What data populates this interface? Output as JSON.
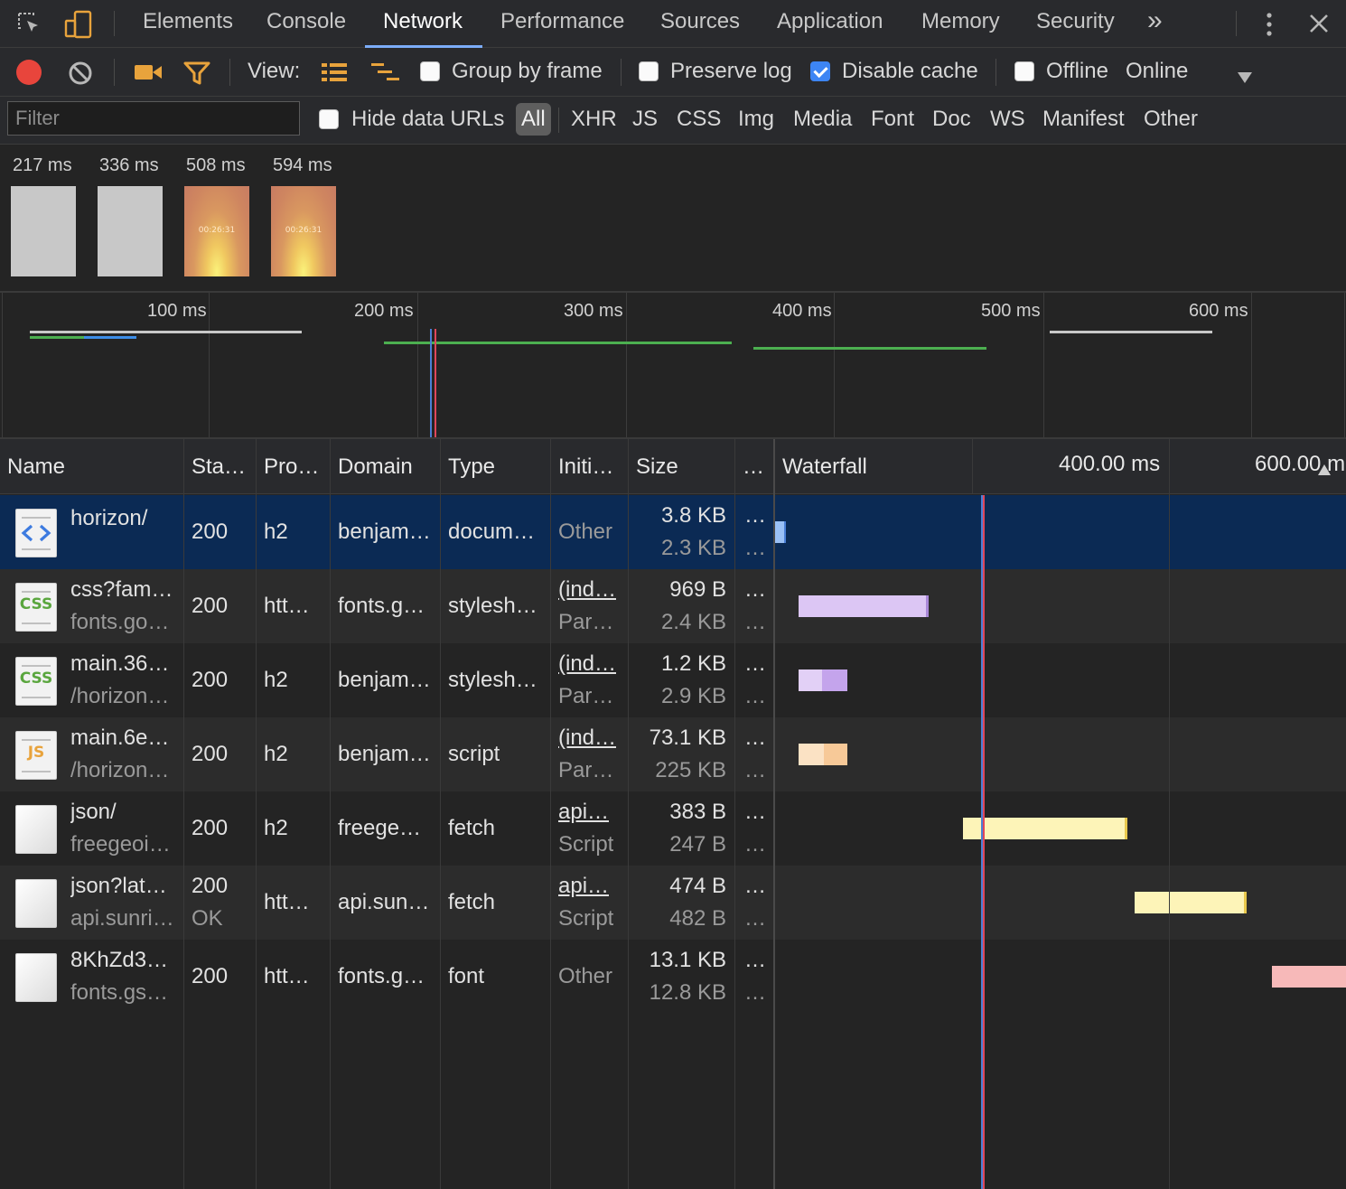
{
  "tabs": [
    "Elements",
    "Console",
    "Network",
    "Performance",
    "Sources",
    "Application",
    "Memory",
    "Security"
  ],
  "active_tab": "Network",
  "more_tabs": "»",
  "toolbar": {
    "view_label": "View:",
    "group_by_frame": {
      "label": "Group by frame",
      "checked": false
    },
    "preserve_log": {
      "label": "Preserve log",
      "checked": false
    },
    "disable_cache": {
      "label": "Disable cache",
      "checked": true
    },
    "offline": {
      "label": "Offline",
      "checked": false
    },
    "throttling": "Online"
  },
  "filter": {
    "placeholder": "Filter",
    "hide_data_urls": {
      "label": "Hide data URLs",
      "checked": false
    },
    "types": [
      "All",
      "XHR",
      "JS",
      "CSS",
      "Img",
      "Media",
      "Font",
      "Doc",
      "WS",
      "Manifest",
      "Other"
    ],
    "active_type": "All"
  },
  "filmstrip": {
    "times": [
      "217 ms",
      "336 ms",
      "508 ms",
      "594 ms"
    ],
    "clock_text": "00:26:31"
  },
  "overview": {
    "labels": [
      "100 ms",
      "200 ms",
      "300 ms",
      "400 ms",
      "500 ms",
      "600 ms"
    ]
  },
  "columns": {
    "name": "Name",
    "status": "Sta…",
    "protocol": "Pro…",
    "domain": "Domain",
    "type": "Type",
    "initiator": "Initi…",
    "size": "Size",
    "more": "…",
    "waterfall": "Waterfall",
    "wf_t1": "400.00 ms",
    "wf_t2": "600.00 m"
  },
  "rows": [
    {
      "icon": "html",
      "name": "horizon/",
      "path": "",
      "status": "200",
      "status2": "",
      "protocol": "h2",
      "domain": "benjam…",
      "type": "docum…",
      "initiator": "Other",
      "initiator2": "",
      "initiator_link": false,
      "size": "3.8 KB",
      "size2": "2.3 KB",
      "more1": "…",
      "more2": "…",
      "selected": true
    },
    {
      "icon": "css",
      "name": "css?fam…",
      "path": "fonts.go…",
      "status": "200",
      "status2": "",
      "protocol": "htt…",
      "domain": "fonts.g…",
      "type": "stylesh…",
      "initiator": "(ind…",
      "initiator2": "Par…",
      "initiator_link": true,
      "size": "969 B",
      "size2": "2.4 KB",
      "more1": "…",
      "more2": "…"
    },
    {
      "icon": "css",
      "name": "main.36…",
      "path": "/horizon…",
      "status": "200",
      "status2": "",
      "protocol": "h2",
      "domain": "benjam…",
      "type": "stylesh…",
      "initiator": "(ind…",
      "initiator2": "Par…",
      "initiator_link": true,
      "size": "1.2 KB",
      "size2": "2.9 KB",
      "more1": "…",
      "more2": "…"
    },
    {
      "icon": "js",
      "name": "main.6e…",
      "path": "/horizon…",
      "status": "200",
      "status2": "",
      "protocol": "h2",
      "domain": "benjam…",
      "type": "script",
      "initiator": "(ind…",
      "initiator2": "Par…",
      "initiator_link": true,
      "size": "73.1 KB",
      "size2": "225 KB",
      "more1": "…",
      "more2": "…"
    },
    {
      "icon": "blank",
      "name": "json/",
      "path": "freegeoi…",
      "status": "200",
      "status2": "",
      "protocol": "h2",
      "domain": "freege…",
      "type": "fetch",
      "initiator": "api…",
      "initiator2": "Script",
      "initiator_link": true,
      "size": "383 B",
      "size2": "247 B",
      "more1": "…",
      "more2": "…"
    },
    {
      "icon": "blank",
      "name": "json?lat…",
      "path": "api.sunri…",
      "status": "200",
      "status2": "OK",
      "protocol": "htt…",
      "domain": "api.sun…",
      "type": "fetch",
      "initiator": "api…",
      "initiator2": "Script",
      "initiator_link": true,
      "size": "474 B",
      "size2": "482 B",
      "more1": "…",
      "more2": "…"
    },
    {
      "icon": "blank",
      "name": "8KhZd3…",
      "path": "fonts.gs…",
      "status": "200",
      "status2": "",
      "protocol": "htt…",
      "domain": "fonts.g…",
      "type": "font",
      "initiator": "Other",
      "initiator2": "",
      "initiator_link": false,
      "size": "13.1 KB",
      "size2": "12.8 KB",
      "more1": "…",
      "more2": "…"
    }
  ],
  "colors": {
    "record": "#e8453c",
    "accent": "#7cacf8",
    "css_wf": "#d8bff4",
    "js_wf": "#f8d5b0",
    "fetch_wf": "#fdf4b8",
    "font_wf": "#f7b9b9"
  }
}
